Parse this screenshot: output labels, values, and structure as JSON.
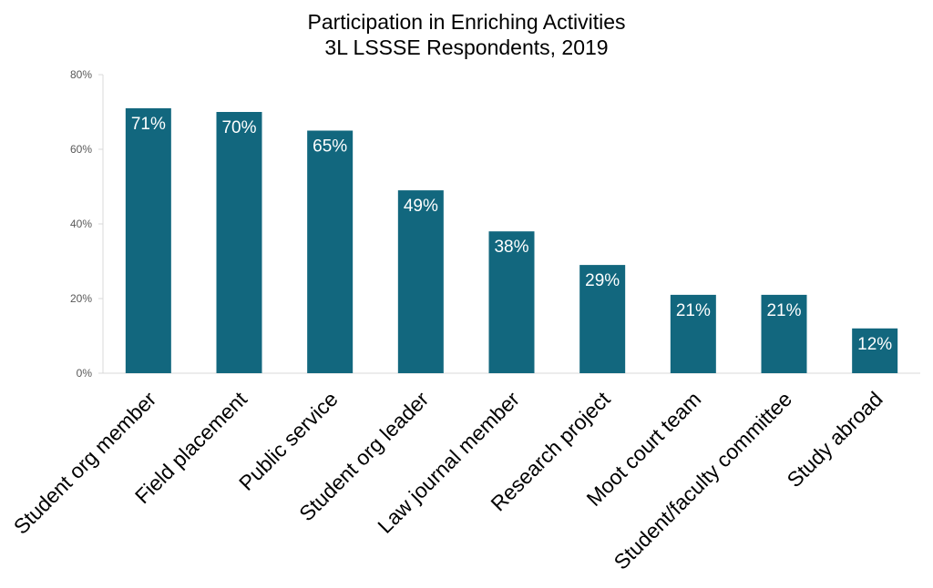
{
  "chart_data": {
    "type": "bar",
    "title": "Participation in Enriching Activities",
    "subtitle": "3L LSSSE Respondents, 2019",
    "categories": [
      "Student org member",
      "Field placement",
      "Public service",
      "Student org leader",
      "Law journal member",
      "Research project",
      "Moot court team",
      "Student/faculty committee",
      "Study abroad"
    ],
    "values": [
      71,
      70,
      65,
      49,
      38,
      29,
      21,
      21,
      12
    ],
    "data_labels": [
      "71%",
      "70%",
      "65%",
      "49%",
      "38%",
      "29%",
      "21%",
      "21%",
      "12%"
    ],
    "y_ticks": [
      0,
      20,
      40,
      60,
      80
    ],
    "y_tick_labels": [
      "0%",
      "20%",
      "40%",
      "60%",
      "80%"
    ],
    "ylim": [
      0,
      80
    ],
    "xlabel": "",
    "ylabel": "",
    "grid": false,
    "legend": "none",
    "colors": {
      "bar": "#12677e",
      "data_label": "#ffffff",
      "axis": "#d9d9d9",
      "tick_label": "#595959",
      "category_label": "#000000"
    }
  }
}
